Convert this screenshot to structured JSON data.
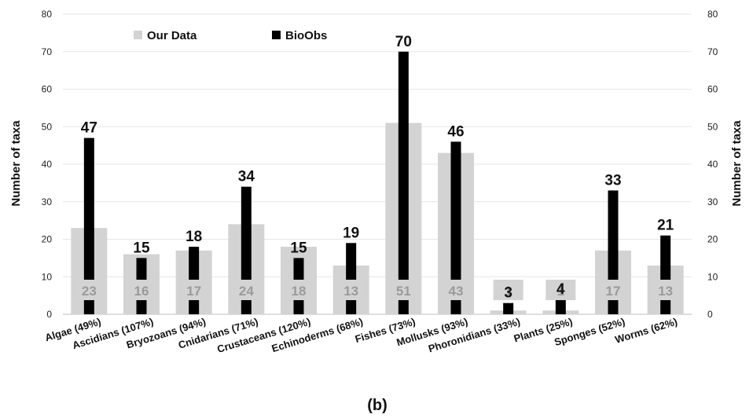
{
  "chart_data": {
    "type": "bar",
    "categories": [
      "Algae (49%)",
      "Ascidians (107%)",
      "Bryozoans (94%)",
      "Cnidarians (71%)",
      "Crustaceans (120%)",
      "Echinoderms (68%)",
      "Fishes (73%)",
      "Mollusks (93%)",
      "Phoronidians (33%)",
      "Plants (25%)",
      "Sponges (52%)",
      "Worms (62%)"
    ],
    "series": [
      {
        "name": "Our Data",
        "values": [
          23,
          16,
          17,
          24,
          18,
          13,
          51,
          43,
          1,
          1,
          17,
          13
        ],
        "color": "#d3d3d3"
      },
      {
        "name": "BioObs",
        "values": [
          47,
          15,
          18,
          34,
          15,
          19,
          70,
          46,
          3,
          4,
          33,
          21
        ],
        "color": "#000000"
      }
    ],
    "ylabel": "Number of taxa",
    "y2label": "Number of taxa",
    "ylim": [
      0,
      80
    ],
    "yticks": [
      0,
      10,
      20,
      30,
      40,
      50,
      60,
      70,
      80
    ],
    "grid": true,
    "legend_position": "top-left",
    "caption": "(b)"
  }
}
